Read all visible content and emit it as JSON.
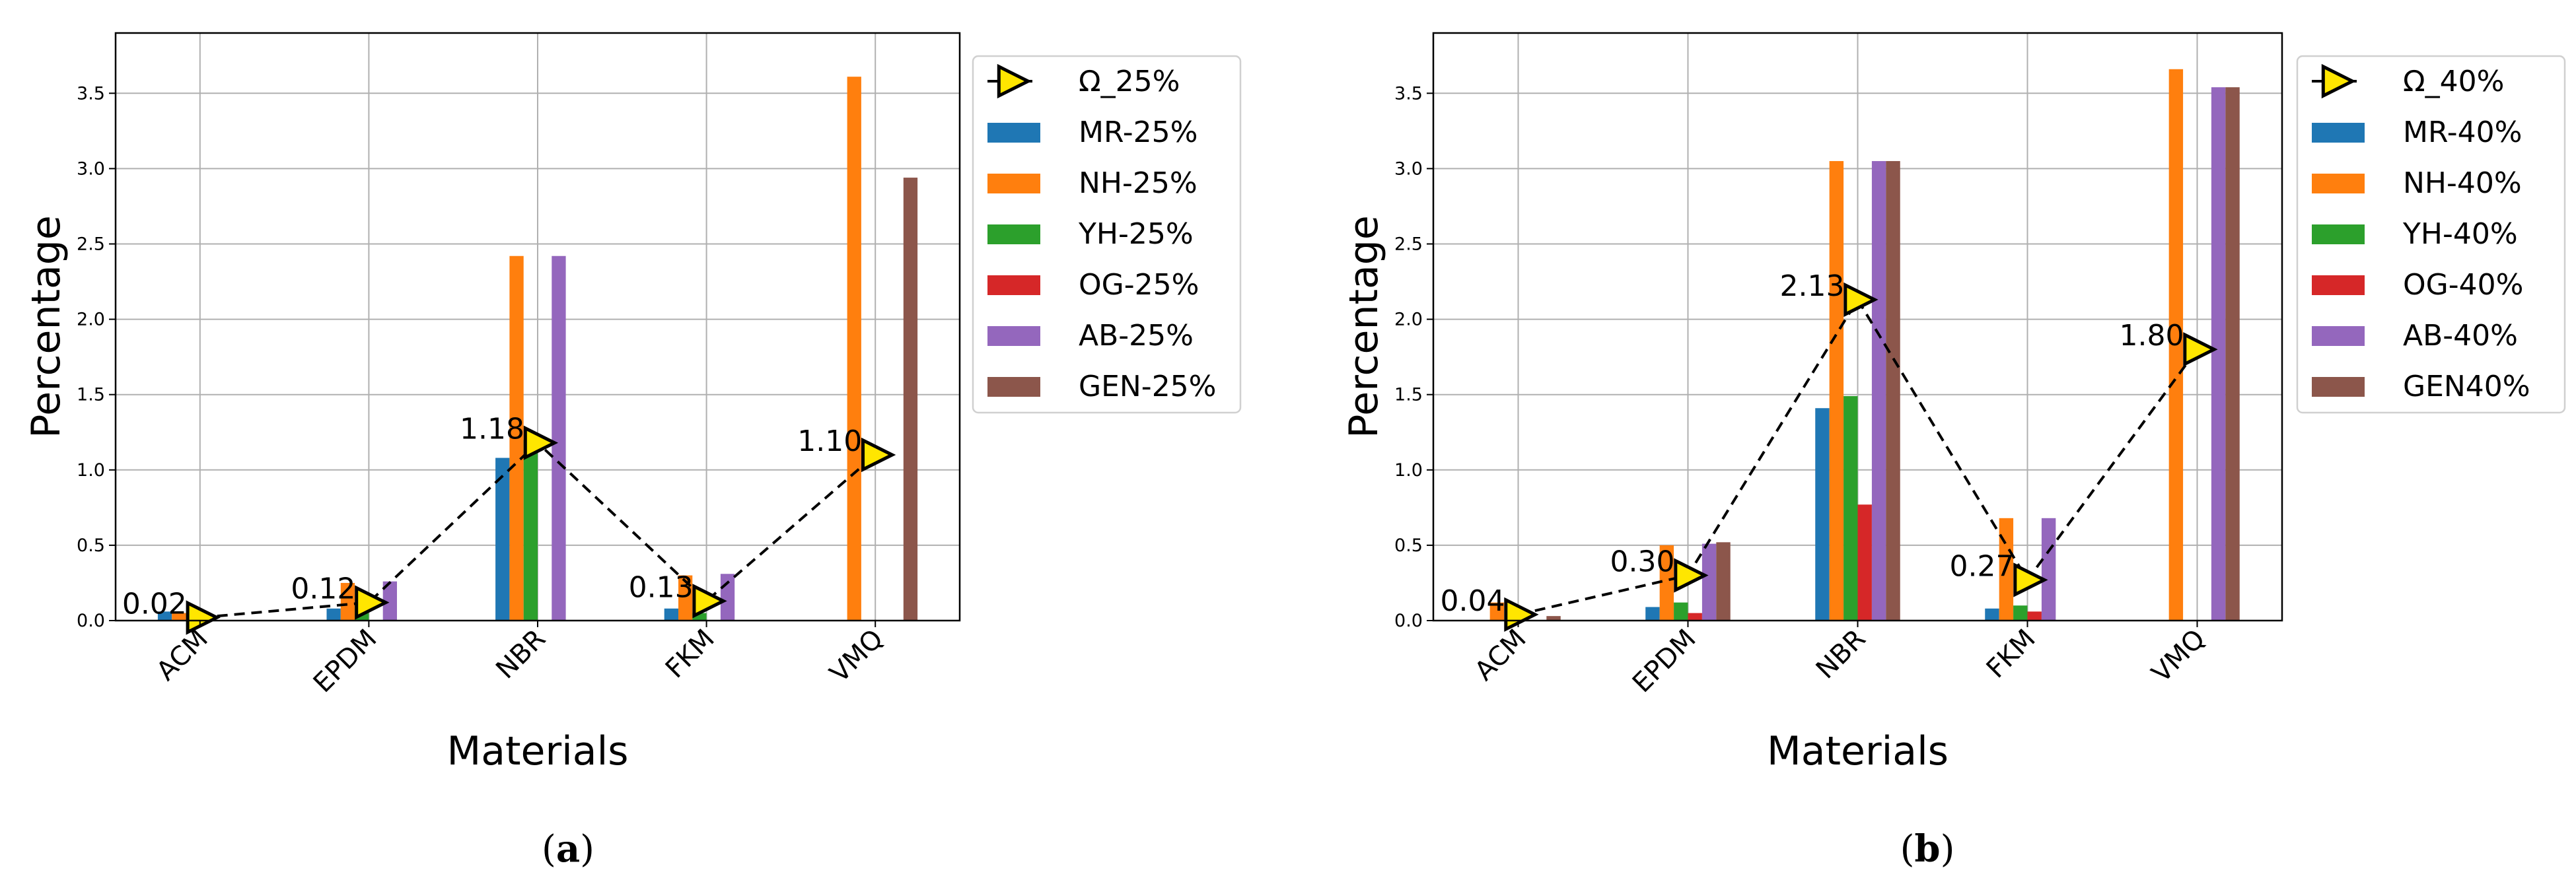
{
  "colors": {
    "MR": "#1f77b4",
    "NH": "#ff7f0e",
    "YH": "#2ca02c",
    "OG": "#d62728",
    "AB": "#9467bd",
    "GEN": "#8c564b",
    "omega_marker": "#ffe600"
  },
  "chart_data": [
    {
      "type": "bar",
      "caption": "a",
      "xlabel": "Materials",
      "ylabel": "Percentage",
      "categories": [
        "ACM",
        "EPDM",
        "NBR",
        "FKM",
        "VMQ"
      ],
      "ylim": [
        0,
        3.9
      ],
      "yticks": [
        "0.0",
        "0.5",
        "1.0",
        "1.5",
        "2.0",
        "2.5",
        "3.0",
        "3.5"
      ],
      "grid": true,
      "legend_position": "outside-right",
      "series": [
        {
          "name": "MR-25%",
          "key": "MR",
          "values": [
            0.06,
            0.08,
            1.08,
            0.08,
            0.0
          ]
        },
        {
          "name": "NH-25%",
          "key": "NH",
          "values": [
            0.05,
            0.25,
            2.42,
            0.3,
            3.61
          ]
        },
        {
          "name": "YH-25%",
          "key": "YH",
          "values": [
            0.0,
            0.1,
            1.2,
            0.05,
            0.0
          ]
        },
        {
          "name": "OG-25%",
          "key": "OG",
          "values": [
            0.0,
            0.0,
            0.0,
            0.0,
            0.0
          ]
        },
        {
          "name": "AB-25%",
          "key": "AB",
          "values": [
            0.0,
            0.26,
            2.42,
            0.31,
            0.0
          ]
        },
        {
          "name": "GEN-25%",
          "key": "GEN",
          "values": [
            0.0,
            0.0,
            0.0,
            0.0,
            2.94
          ]
        }
      ],
      "omega": {
        "name": "Ω_25%",
        "values": [
          0.02,
          0.12,
          1.18,
          0.13,
          1.1
        ],
        "labels": [
          "0.02",
          "0.12",
          "1.18",
          "0.13",
          "1.10"
        ]
      }
    },
    {
      "type": "bar",
      "caption": "b",
      "xlabel": "Materials",
      "ylabel": "Percentage",
      "categories": [
        "ACM",
        "EPDM",
        "NBR",
        "FKM",
        "VMQ"
      ],
      "ylim": [
        0,
        3.9
      ],
      "yticks": [
        "0.0",
        "0.5",
        "1.0",
        "1.5",
        "2.0",
        "2.5",
        "3.0",
        "3.5"
      ],
      "grid": true,
      "legend_position": "outside-right",
      "series": [
        {
          "name": "MR-40%",
          "key": "MR",
          "values": [
            0.0,
            0.09,
            1.41,
            0.08,
            0.0
          ]
        },
        {
          "name": "NH-40%",
          "key": "NH",
          "values": [
            0.12,
            0.5,
            3.05,
            0.68,
            3.66
          ]
        },
        {
          "name": "YH-40%",
          "key": "YH",
          "values": [
            0.0,
            0.12,
            1.49,
            0.1,
            0.0
          ]
        },
        {
          "name": "OG-40%",
          "key": "OG",
          "values": [
            0.0,
            0.05,
            0.77,
            0.06,
            0.0
          ]
        },
        {
          "name": "AB-40%",
          "key": "AB",
          "values": [
            0.0,
            0.51,
            3.05,
            0.68,
            3.54
          ]
        },
        {
          "name": "GEN40%",
          "key": "GEN",
          "values": [
            0.03,
            0.52,
            3.05,
            0.0,
            3.54
          ]
        }
      ],
      "omega": {
        "name": "Ω_40%",
        "values": [
          0.04,
          0.3,
          2.13,
          0.27,
          1.8
        ],
        "labels": [
          "0.04",
          "0.30",
          "2.13",
          "0.27",
          "1.80"
        ]
      }
    }
  ]
}
